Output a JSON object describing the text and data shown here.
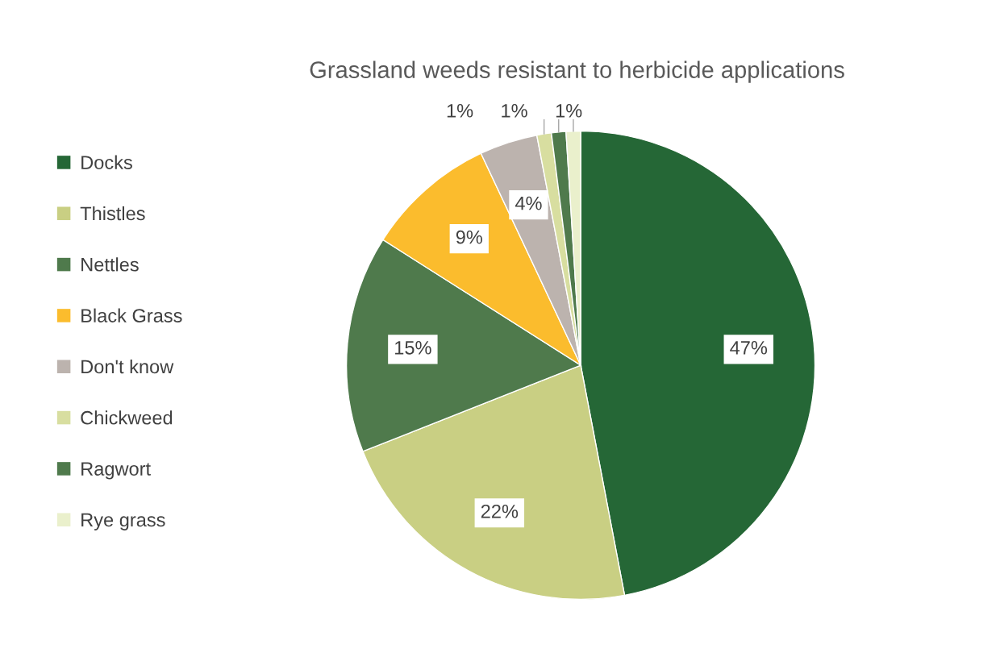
{
  "chart_data": {
    "type": "pie",
    "title": "Grassland weeds resistant to herbicide applications",
    "categories": [
      "Docks",
      "Thistles",
      "Nettles",
      "Black Grass",
      "Don't know",
      "Chickweed",
      "Ragwort",
      "Rye grass"
    ],
    "values": [
      47,
      22,
      15,
      9,
      4,
      1,
      1,
      1
    ],
    "value_labels": [
      "47%",
      "22%",
      "15%",
      "9%",
      "4%",
      "1%",
      "1%",
      "1%"
    ],
    "colors": [
      "#256736",
      "#c9cf83",
      "#4f7a4c",
      "#fbbc2d",
      "#bcb3ae",
      "#d8dea0",
      "#4f7a4c",
      "#eaf0cc"
    ],
    "legend": "left"
  }
}
